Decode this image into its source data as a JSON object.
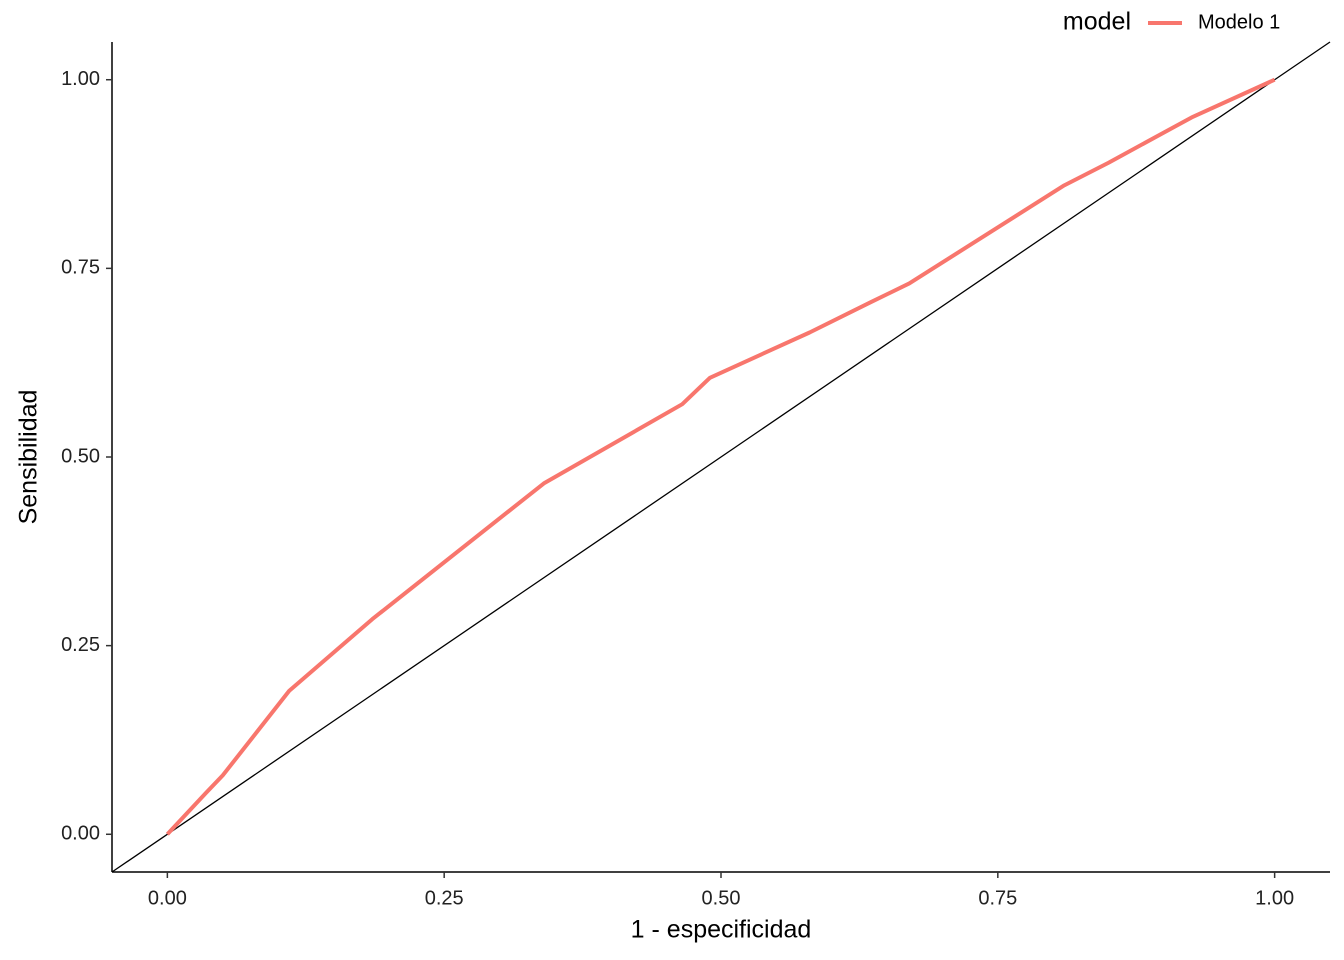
{
  "chart_data": {
    "type": "line",
    "x_label": "1 - especificidad",
    "y_label": "Sensibilidad",
    "legend_title": "model",
    "legend_position": "top-right",
    "diagonal_reference": true,
    "grid": false,
    "xlim": [
      -0.05,
      1.05
    ],
    "ylim": [
      -0.05,
      1.05
    ],
    "xticks": [
      {
        "value": 0,
        "label": "0.00"
      },
      {
        "value": 0.25,
        "label": "0.25"
      },
      {
        "value": 0.5,
        "label": "0.50"
      },
      {
        "value": 0.75,
        "label": "0.75"
      },
      {
        "value": 1,
        "label": "1.00"
      }
    ],
    "yticks": [
      {
        "value": 0,
        "label": "0.00"
      },
      {
        "value": 0.25,
        "label": "0.25"
      },
      {
        "value": 0.5,
        "label": "0.50"
      },
      {
        "value": 0.75,
        "label": "0.75"
      },
      {
        "value": 1,
        "label": "1.00"
      }
    ],
    "x": [
      0,
      0.035,
      0.05,
      0.11,
      0.185,
      0.34,
      0.465,
      0.49,
      0.58,
      0.635,
      0.67,
      0.81,
      0.85,
      0.925,
      1
    ],
    "series": [
      {
        "name": "Modelo 1",
        "color": "#F8766D",
        "values": [
          0,
          0.055,
          0.078,
          0.19,
          0.285,
          0.465,
          0.57,
          0.605,
          0.665,
          0.705,
          0.73,
          0.86,
          0.89,
          0.95,
          1
        ]
      }
    ]
  }
}
